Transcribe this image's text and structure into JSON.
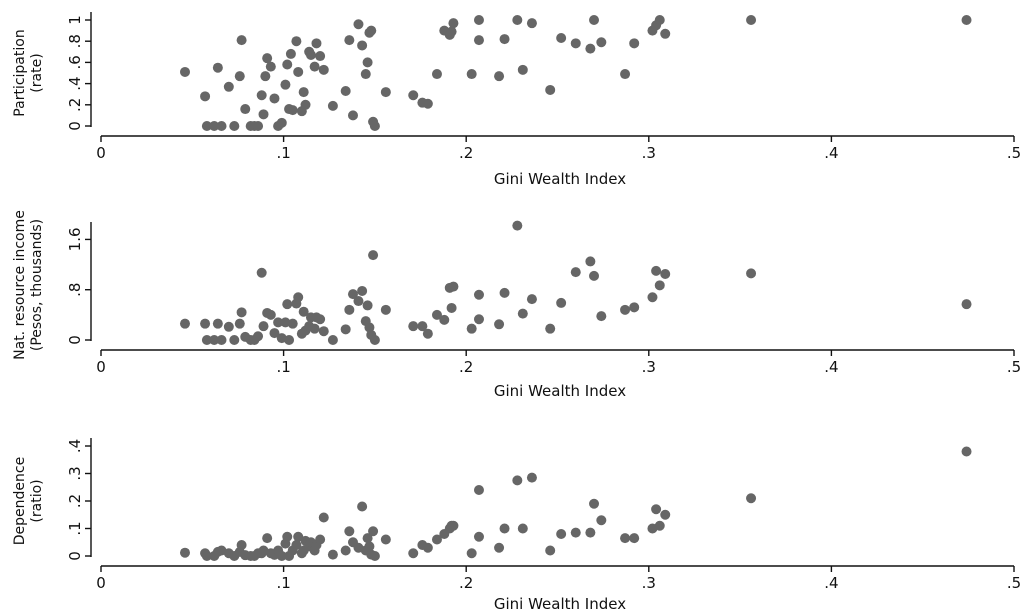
{
  "chart_data": [
    {
      "type": "scatter",
      "xlabel": "Gini Wealth Index",
      "ylabel_lines": [
        "Participation",
        "(rate)"
      ],
      "xlim": [
        0,
        0.5
      ],
      "ylim": [
        0,
        1
      ],
      "xticks": [
        0,
        0.1,
        0.2,
        0.3,
        0.4,
        0.5
      ],
      "xtick_labels": [
        "0",
        ".1",
        ".2",
        ".3",
        ".4",
        ".5"
      ],
      "yticks": [
        0,
        0.2,
        0.4,
        0.6,
        0.8,
        1
      ],
      "ytick_labels": [
        "0",
        ".2",
        ".4",
        ".6",
        ".8",
        "1"
      ],
      "grid": false,
      "points": [
        [
          0.046,
          0.51
        ],
        [
          0.057,
          0.28
        ],
        [
          0.058,
          0.0
        ],
        [
          0.062,
          0.0
        ],
        [
          0.064,
          0.55
        ],
        [
          0.066,
          0.0
        ],
        [
          0.07,
          0.37
        ],
        [
          0.073,
          0.0
        ],
        [
          0.076,
          0.47
        ],
        [
          0.077,
          0.81
        ],
        [
          0.079,
          0.16
        ],
        [
          0.082,
          0.0
        ],
        [
          0.084,
          0.0
        ],
        [
          0.086,
          0.0
        ],
        [
          0.088,
          0.29
        ],
        [
          0.089,
          0.11
        ],
        [
          0.09,
          0.47
        ],
        [
          0.091,
          0.64
        ],
        [
          0.093,
          0.56
        ],
        [
          0.095,
          0.26
        ],
        [
          0.097,
          0.0
        ],
        [
          0.099,
          0.03
        ],
        [
          0.101,
          0.39
        ],
        [
          0.102,
          0.58
        ],
        [
          0.103,
          0.16
        ],
        [
          0.104,
          0.68
        ],
        [
          0.105,
          0.15
        ],
        [
          0.107,
          0.8
        ],
        [
          0.108,
          0.51
        ],
        [
          0.11,
          0.14
        ],
        [
          0.111,
          0.32
        ],
        [
          0.112,
          0.2
        ],
        [
          0.114,
          0.7
        ],
        [
          0.115,
          0.67
        ],
        [
          0.117,
          0.56
        ],
        [
          0.118,
          0.78
        ],
        [
          0.12,
          0.66
        ],
        [
          0.122,
          0.53
        ],
        [
          0.127,
          0.19
        ],
        [
          0.134,
          0.33
        ],
        [
          0.136,
          0.81
        ],
        [
          0.138,
          0.1
        ],
        [
          0.141,
          0.96
        ],
        [
          0.143,
          0.76
        ],
        [
          0.145,
          0.49
        ],
        [
          0.146,
          0.6
        ],
        [
          0.147,
          0.88
        ],
        [
          0.148,
          0.9
        ],
        [
          0.149,
          0.04
        ],
        [
          0.15,
          0.0
        ],
        [
          0.156,
          0.32
        ],
        [
          0.171,
          0.29
        ],
        [
          0.176,
          0.22
        ],
        [
          0.179,
          0.21
        ],
        [
          0.184,
          0.49
        ],
        [
          0.188,
          0.9
        ],
        [
          0.191,
          0.86
        ],
        [
          0.192,
          0.89
        ],
        [
          0.193,
          0.97
        ],
        [
          0.203,
          0.49
        ],
        [
          0.207,
          1.0
        ],
        [
          0.207,
          0.81
        ],
        [
          0.218,
          0.47
        ],
        [
          0.221,
          0.82
        ],
        [
          0.228,
          1.0
        ],
        [
          0.231,
          0.53
        ],
        [
          0.236,
          0.97
        ],
        [
          0.246,
          0.34
        ],
        [
          0.252,
          0.83
        ],
        [
          0.26,
          0.78
        ],
        [
          0.268,
          0.73
        ],
        [
          0.27,
          1.0
        ],
        [
          0.274,
          0.79
        ],
        [
          0.287,
          0.49
        ],
        [
          0.292,
          0.78
        ],
        [
          0.302,
          0.9
        ],
        [
          0.304,
          0.95
        ],
        [
          0.306,
          1.0
        ],
        [
          0.309,
          0.87
        ],
        [
          0.356,
          1.0
        ],
        [
          0.474,
          1.0
        ]
      ]
    },
    {
      "type": "scatter",
      "xlabel": "Gini Wealth Index",
      "ylabel_lines": [
        "Nat. resource income",
        "(Pesos, thousands)"
      ],
      "xlim": [
        0,
        0.5
      ],
      "ylim": [
        0,
        1.75
      ],
      "xticks": [
        0,
        0.1,
        0.2,
        0.3,
        0.4,
        0.5
      ],
      "xtick_labels": [
        "0",
        ".1",
        ".2",
        ".3",
        ".4",
        ".5"
      ],
      "yticks": [
        0,
        0.8,
        1.6
      ],
      "ytick_labels": [
        "0",
        ".8",
        "1.6"
      ],
      "grid": false,
      "points": [
        [
          0.046,
          0.26
        ],
        [
          0.057,
          0.26
        ],
        [
          0.058,
          0.0
        ],
        [
          0.062,
          0.0
        ],
        [
          0.064,
          0.26
        ],
        [
          0.066,
          0.0
        ],
        [
          0.07,
          0.21
        ],
        [
          0.073,
          0.0
        ],
        [
          0.076,
          0.26
        ],
        [
          0.077,
          0.44
        ],
        [
          0.079,
          0.05
        ],
        [
          0.082,
          0.0
        ],
        [
          0.084,
          0.0
        ],
        [
          0.086,
          0.06
        ],
        [
          0.088,
          1.07
        ],
        [
          0.089,
          0.22
        ],
        [
          0.091,
          0.43
        ],
        [
          0.093,
          0.4
        ],
        [
          0.095,
          0.11
        ],
        [
          0.097,
          0.28
        ],
        [
          0.099,
          0.03
        ],
        [
          0.101,
          0.28
        ],
        [
          0.102,
          0.57
        ],
        [
          0.103,
          0.0
        ],
        [
          0.105,
          0.26
        ],
        [
          0.107,
          0.58
        ],
        [
          0.108,
          0.68
        ],
        [
          0.11,
          0.1
        ],
        [
          0.111,
          0.45
        ],
        [
          0.112,
          0.15
        ],
        [
          0.114,
          0.22
        ],
        [
          0.115,
          0.36
        ],
        [
          0.117,
          0.18
        ],
        [
          0.118,
          0.36
        ],
        [
          0.12,
          0.33
        ],
        [
          0.122,
          0.14
        ],
        [
          0.127,
          0.0
        ],
        [
          0.134,
          0.17
        ],
        [
          0.136,
          0.48
        ],
        [
          0.138,
          0.73
        ],
        [
          0.141,
          0.62
        ],
        [
          0.143,
          0.78
        ],
        [
          0.145,
          0.3
        ],
        [
          0.146,
          0.55
        ],
        [
          0.147,
          0.2
        ],
        [
          0.148,
          0.08
        ],
        [
          0.149,
          1.35
        ],
        [
          0.15,
          0.0
        ],
        [
          0.156,
          0.48
        ],
        [
          0.171,
          0.22
        ],
        [
          0.176,
          0.22
        ],
        [
          0.179,
          0.1
        ],
        [
          0.184,
          0.4
        ],
        [
          0.188,
          0.32
        ],
        [
          0.191,
          0.83
        ],
        [
          0.192,
          0.51
        ],
        [
          0.193,
          0.85
        ],
        [
          0.203,
          0.18
        ],
        [
          0.207,
          0.72
        ],
        [
          0.207,
          0.33
        ],
        [
          0.218,
          0.25
        ],
        [
          0.221,
          0.75
        ],
        [
          0.228,
          1.82
        ],
        [
          0.231,
          0.42
        ],
        [
          0.236,
          0.65
        ],
        [
          0.246,
          0.18
        ],
        [
          0.252,
          0.59
        ],
        [
          0.26,
          1.08
        ],
        [
          0.268,
          1.25
        ],
        [
          0.27,
          1.02
        ],
        [
          0.274,
          0.38
        ],
        [
          0.287,
          0.48
        ],
        [
          0.292,
          0.52
        ],
        [
          0.302,
          0.68
        ],
        [
          0.304,
          1.1
        ],
        [
          0.306,
          0.87
        ],
        [
          0.309,
          1.05
        ],
        [
          0.356,
          1.06
        ],
        [
          0.474,
          0.57
        ]
      ]
    },
    {
      "type": "scatter",
      "xlabel": "Gini Wealth Index",
      "ylabel_lines": [
        "Dependence",
        "(ratio)"
      ],
      "xlim": [
        0,
        0.5
      ],
      "ylim": [
        0,
        0.4
      ],
      "xticks": [
        0,
        0.1,
        0.2,
        0.3,
        0.4,
        0.5
      ],
      "xtick_labels": [
        "0",
        ".1",
        ".2",
        ".3",
        ".4",
        ".5"
      ],
      "yticks": [
        0,
        0.1,
        0.2,
        0.3,
        0.4
      ],
      "ytick_labels": [
        "0",
        ".1",
        ".2",
        ".3",
        ".4"
      ],
      "grid": false,
      "points": [
        [
          0.046,
          0.012
        ],
        [
          0.057,
          0.01
        ],
        [
          0.058,
          0.0
        ],
        [
          0.062,
          0.0
        ],
        [
          0.064,
          0.015
        ],
        [
          0.066,
          0.02
        ],
        [
          0.07,
          0.01
        ],
        [
          0.073,
          0.0
        ],
        [
          0.076,
          0.015
        ],
        [
          0.077,
          0.04
        ],
        [
          0.079,
          0.003
        ],
        [
          0.082,
          0.0
        ],
        [
          0.084,
          0.0
        ],
        [
          0.086,
          0.01
        ],
        [
          0.088,
          0.01
        ],
        [
          0.089,
          0.02
        ],
        [
          0.091,
          0.065
        ],
        [
          0.093,
          0.01
        ],
        [
          0.095,
          0.004
        ],
        [
          0.097,
          0.02
        ],
        [
          0.099,
          0.0
        ],
        [
          0.101,
          0.045
        ],
        [
          0.102,
          0.07
        ],
        [
          0.103,
          0.0
        ],
        [
          0.105,
          0.02
        ],
        [
          0.107,
          0.04
        ],
        [
          0.108,
          0.07
        ],
        [
          0.11,
          0.01
        ],
        [
          0.111,
          0.02
        ],
        [
          0.112,
          0.055
        ],
        [
          0.114,
          0.035
        ],
        [
          0.115,
          0.05
        ],
        [
          0.117,
          0.02
        ],
        [
          0.118,
          0.04
        ],
        [
          0.12,
          0.06
        ],
        [
          0.122,
          0.14
        ],
        [
          0.127,
          0.005
        ],
        [
          0.134,
          0.02
        ],
        [
          0.136,
          0.09
        ],
        [
          0.138,
          0.05
        ],
        [
          0.141,
          0.03
        ],
        [
          0.143,
          0.18
        ],
        [
          0.145,
          0.02
        ],
        [
          0.146,
          0.065
        ],
        [
          0.147,
          0.035
        ],
        [
          0.148,
          0.005
        ],
        [
          0.149,
          0.09
        ],
        [
          0.15,
          0.0
        ],
        [
          0.156,
          0.06
        ],
        [
          0.171,
          0.01
        ],
        [
          0.176,
          0.04
        ],
        [
          0.179,
          0.03
        ],
        [
          0.184,
          0.06
        ],
        [
          0.188,
          0.08
        ],
        [
          0.191,
          0.1
        ],
        [
          0.192,
          0.11
        ],
        [
          0.193,
          0.11
        ],
        [
          0.203,
          0.01
        ],
        [
          0.207,
          0.24
        ],
        [
          0.207,
          0.07
        ],
        [
          0.218,
          0.03
        ],
        [
          0.221,
          0.1
        ],
        [
          0.228,
          0.275
        ],
        [
          0.231,
          0.1
        ],
        [
          0.236,
          0.285
        ],
        [
          0.246,
          0.02
        ],
        [
          0.252,
          0.08
        ],
        [
          0.26,
          0.085
        ],
        [
          0.268,
          0.085
        ],
        [
          0.27,
          0.19
        ],
        [
          0.274,
          0.13
        ],
        [
          0.287,
          0.065
        ],
        [
          0.292,
          0.065
        ],
        [
          0.302,
          0.1
        ],
        [
          0.304,
          0.17
        ],
        [
          0.306,
          0.11
        ],
        [
          0.309,
          0.15
        ],
        [
          0.356,
          0.21
        ],
        [
          0.474,
          0.38
        ]
      ]
    }
  ]
}
